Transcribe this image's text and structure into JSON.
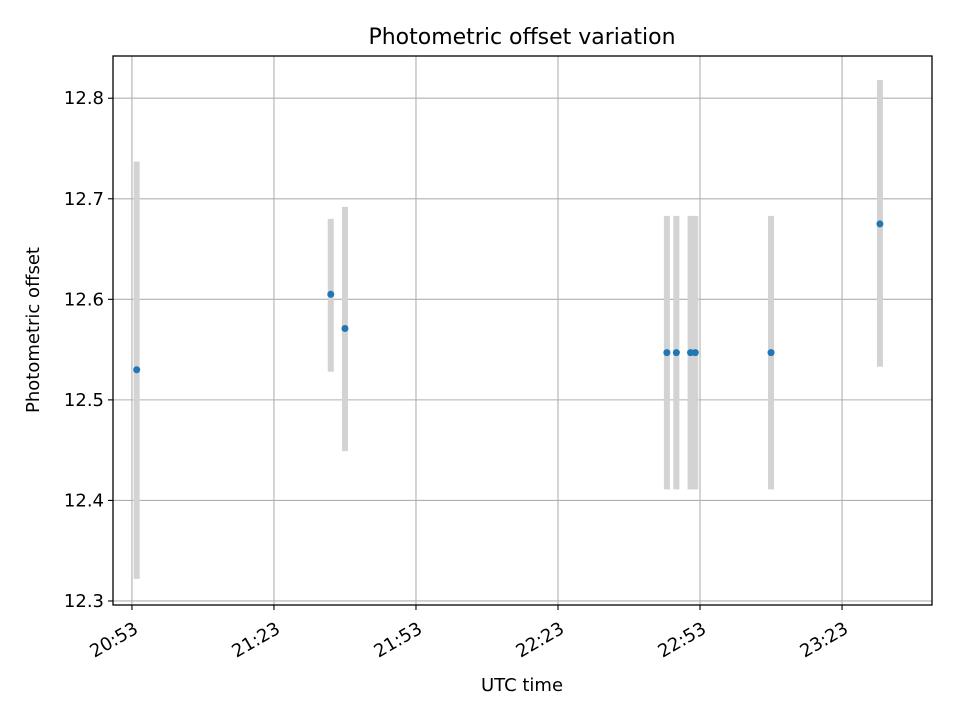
{
  "chart_data": {
    "type": "scatter",
    "title": "Photometric offset variation",
    "xlabel": "UTC time",
    "ylabel": "Photometric offset",
    "x_axis_type": "time",
    "xlim": [
      "20:49",
      "23:42"
    ],
    "ylim": [
      12.296,
      12.842
    ],
    "x_ticks": [
      "20:53",
      "21:23",
      "21:53",
      "22:23",
      "22:53",
      "23:23"
    ],
    "y_ticks": [
      "12.3",
      "12.4",
      "12.5",
      "12.6",
      "12.7",
      "12.8"
    ],
    "grid": true,
    "marker_color": "#1f77b4",
    "errorbar_color": "#d3d3d3",
    "series": [
      {
        "points": [
          {
            "x": "20:54",
            "y": 12.53,
            "ylow": 12.322,
            "yhigh": 12.737
          },
          {
            "x": "21:35",
            "y": 12.605,
            "ylow": 12.528,
            "yhigh": 12.68
          },
          {
            "x": "21:38",
            "y": 12.571,
            "ylow": 12.449,
            "yhigh": 12.692
          },
          {
            "x": "22:46",
            "y": 12.547,
            "ylow": 12.411,
            "yhigh": 12.683
          },
          {
            "x": "22:48",
            "y": 12.547,
            "ylow": 12.411,
            "yhigh": 12.683
          },
          {
            "x": "22:51",
            "y": 12.547,
            "ylow": 12.411,
            "yhigh": 12.683
          },
          {
            "x": "22:52",
            "y": 12.547,
            "ylow": 12.411,
            "yhigh": 12.683
          },
          {
            "x": "23:08",
            "y": 12.547,
            "ylow": 12.411,
            "yhigh": 12.683
          },
          {
            "x": "23:31",
            "y": 12.675,
            "ylow": 12.533,
            "yhigh": 12.818
          }
        ]
      }
    ]
  }
}
